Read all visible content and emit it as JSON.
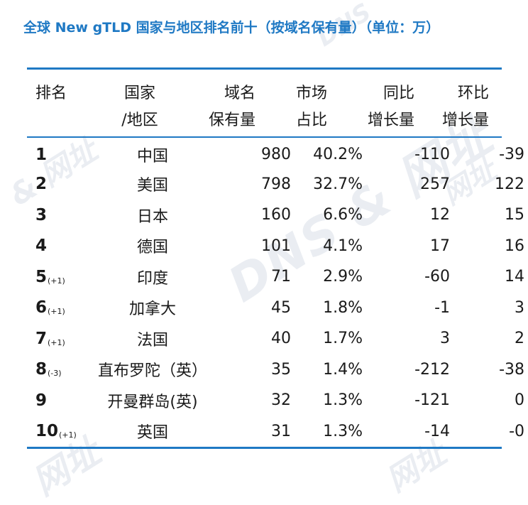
{
  "title": "全球 New gTLD 国家与地区排名前十（按域名保有量）（单位：万）",
  "header": {
    "rank": "排名",
    "country_line1": "国家",
    "country_line2": "/地区",
    "holdings_line1": "域名",
    "holdings_line2": "保有量",
    "share_line1": "市场",
    "share_line2": "占比",
    "yoy_line1": "同比",
    "yoy_line2": "增长量",
    "qoq_line1": "环比",
    "qoq_line2": "增长量"
  },
  "rows": [
    {
      "rank": "1",
      "rank_change": "",
      "country": "中国",
      "holdings": "980",
      "share": "40.2%",
      "yoy": "-110",
      "qoq": "-39"
    },
    {
      "rank": "2",
      "rank_change": "",
      "country": "美国",
      "holdings": "798",
      "share": "32.7%",
      "yoy": "257",
      "qoq": "122"
    },
    {
      "rank": "3",
      "rank_change": "",
      "country": "日本",
      "holdings": "160",
      "share": "6.6%",
      "yoy": "12",
      "qoq": "15"
    },
    {
      "rank": "4",
      "rank_change": "",
      "country": "德国",
      "holdings": "101",
      "share": "4.1%",
      "yoy": "17",
      "qoq": "16"
    },
    {
      "rank": "5",
      "rank_change": "(+1)",
      "country": "印度",
      "holdings": "71",
      "share": "2.9%",
      "yoy": "-60",
      "qoq": "14"
    },
    {
      "rank": "6",
      "rank_change": "(+1)",
      "country": "加拿大",
      "holdings": "45",
      "share": "1.8%",
      "yoy": "-1",
      "qoq": "3"
    },
    {
      "rank": "7",
      "rank_change": "(+1)",
      "country": "法国",
      "holdings": "40",
      "share": "1.7%",
      "yoy": "3",
      "qoq": "2"
    },
    {
      "rank": "8",
      "rank_change": "(-3)",
      "country": "直布罗陀（英）",
      "holdings": "35",
      "share": "1.4%",
      "yoy": "-212",
      "qoq": "-38"
    },
    {
      "rank": "9",
      "rank_change": "",
      "country": "开曼群岛(英)",
      "holdings": "32",
      "share": "1.3%",
      "yoy": "-121",
      "qoq": "0"
    },
    {
      "rank": "10",
      "rank_change": "(+1)",
      "country": "英国",
      "holdings": "31",
      "share": "1.3%",
      "yoy": "-14",
      "qoq": "-0"
    }
  ],
  "watermarks": [
    "DNS & 网址",
    "& 网址",
    "网址",
    "网址",
    "网址",
    "DNS"
  ],
  "colors": {
    "accent": "#1f79c4",
    "text": "#1a1a1a",
    "watermark": "#bec8d7"
  }
}
